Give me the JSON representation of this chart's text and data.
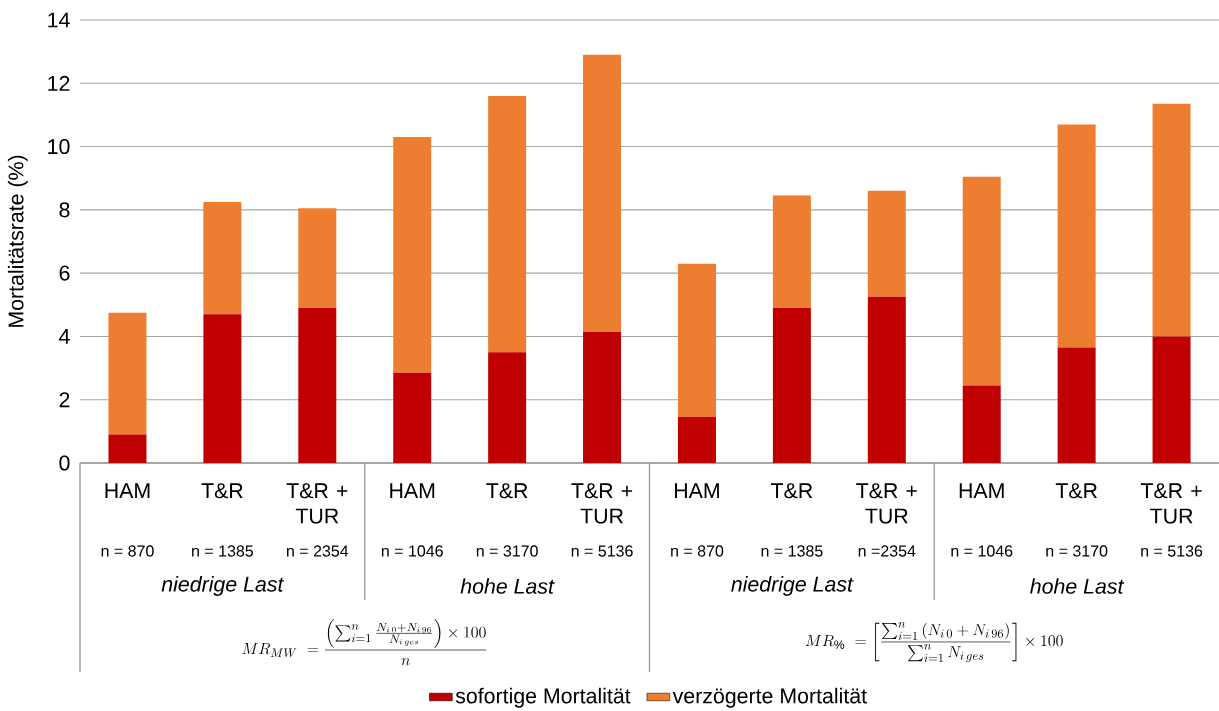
{
  "chart_data": {
    "type": "bar",
    "stacked": true,
    "ylabel": "Mortalitätsrate (%)",
    "categories": [
      "HAM",
      "T&R",
      "T&R + TUR",
      "HAM",
      "T&R",
      "T&R + TUR",
      "HAM",
      "T&R",
      "T&R + TUR",
      "HAM",
      "T&R",
      "T&R + TUR"
    ],
    "series": [
      {
        "name": "sofortige Mortalität",
        "color": "#c00000",
        "values": [
          0.9,
          4.7,
          4.9,
          2.85,
          3.5,
          4.15,
          1.45,
          4.9,
          5.25,
          2.45,
          3.65,
          4.0
        ]
      },
      {
        "name": "verzögerte Mortalität",
        "color": "#ed7d31",
        "values": [
          3.85,
          3.55,
          3.15,
          7.45,
          8.1,
          8.75,
          4.85,
          3.55,
          3.35,
          6.6,
          7.05,
          7.35
        ]
      }
    ],
    "ylim": [
      0,
      14
    ],
    "yticks": [
      0,
      2,
      4,
      6,
      8,
      10,
      12,
      14
    ],
    "grid": "y",
    "legend": "bottom",
    "annotations": [
      "n = 870",
      "n = 1385",
      "n = 2354",
      "n = 1046",
      "n = 3170",
      "n = 5136",
      "n = 870",
      "n = 1385",
      "n =2354",
      "n = 1046",
      "n = 3170",
      "n = 5136",
      "niedrige Last",
      "hohe Last",
      "niedrige Last",
      "hohe Last",
      "MR_{MW}\\ =\\frac{\\left(\\sum_{i=1}^{n}\\frac{N_{i\\,0}+N_{i\\,96}}{N_{i\\,ges}}\\right)\\times 100}{n}",
      "MR_{\\%}\\ =\\left[\\frac{\\sum_{i=1}^{n}\\left(N_{i\\,0}+N_{i\\,96}\\right)}{\\sum_{i=1}^{n}N_{i\\,ges}}\\right]\\times 100"
    ]
  }
}
